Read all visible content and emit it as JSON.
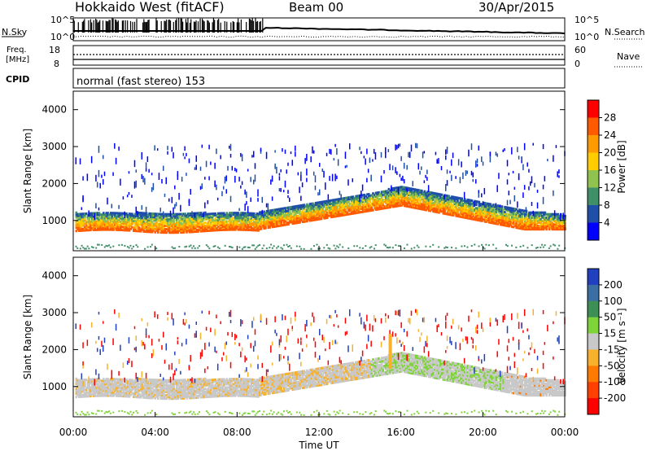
{
  "header": {
    "station": "Hokkaido West (fitACF)",
    "beam": "Beam 00",
    "date": "30/Apr/2015"
  },
  "status_panel": {
    "nsky_label": "N.Sky",
    "nsearch_label": "N.Search",
    "freq_label_1": "Freq.",
    "freq_label_2": "[MHz]",
    "nave_label": "Nave",
    "cpid_label": "CPID",
    "cpid_value": "normal (fast stereo) 153",
    "left_ticks_top": [
      "10^5",
      "10^0"
    ],
    "right_ticks_top": [
      "10^5",
      "10^0"
    ],
    "freq_ticks": [
      "18",
      "8"
    ],
    "nave_ticks": [
      "60",
      "0"
    ]
  },
  "chart_data": [
    {
      "type": "heatmap",
      "name": "power",
      "ylabel": "Slant Range [km]",
      "ylim": [
        180,
        4500
      ],
      "yticks": [
        "4000",
        "3000",
        "2000",
        "1000"
      ],
      "colorbar": {
        "label": "Power [dB]",
        "ticks": [
          "28",
          "24",
          "20",
          "16",
          "12",
          "8",
          "4"
        ],
        "colors": [
          "#ff0000",
          "#ff5a00",
          "#ff9b00",
          "#ffcc00",
          "#8fc24f",
          "#3f8f68",
          "#1f4fa8",
          "#0000ff"
        ]
      }
    },
    {
      "type": "heatmap",
      "name": "velocity",
      "ylabel": "Slant Range [km]",
      "xlabel": "Time UT",
      "xticks": [
        "00:00",
        "04:00",
        "08:00",
        "12:00",
        "16:00",
        "20:00",
        "00:00"
      ],
      "ylim": [
        180,
        4500
      ],
      "yticks": [
        "4000",
        "3000",
        "2000",
        "1000"
      ],
      "colorbar": {
        "label": "Velocity [m s⁻¹]",
        "ticks": [
          "200",
          "100",
          "50",
          "15",
          "-15",
          "-50",
          "-100",
          "-200"
        ],
        "colors": [
          "#2040c0",
          "#3b6ea3",
          "#3d8f56",
          "#7fd33a",
          "#c8c8c8",
          "#f7b12b",
          "#ff7a00",
          "#ff4000",
          "#ff0000"
        ]
      }
    }
  ]
}
